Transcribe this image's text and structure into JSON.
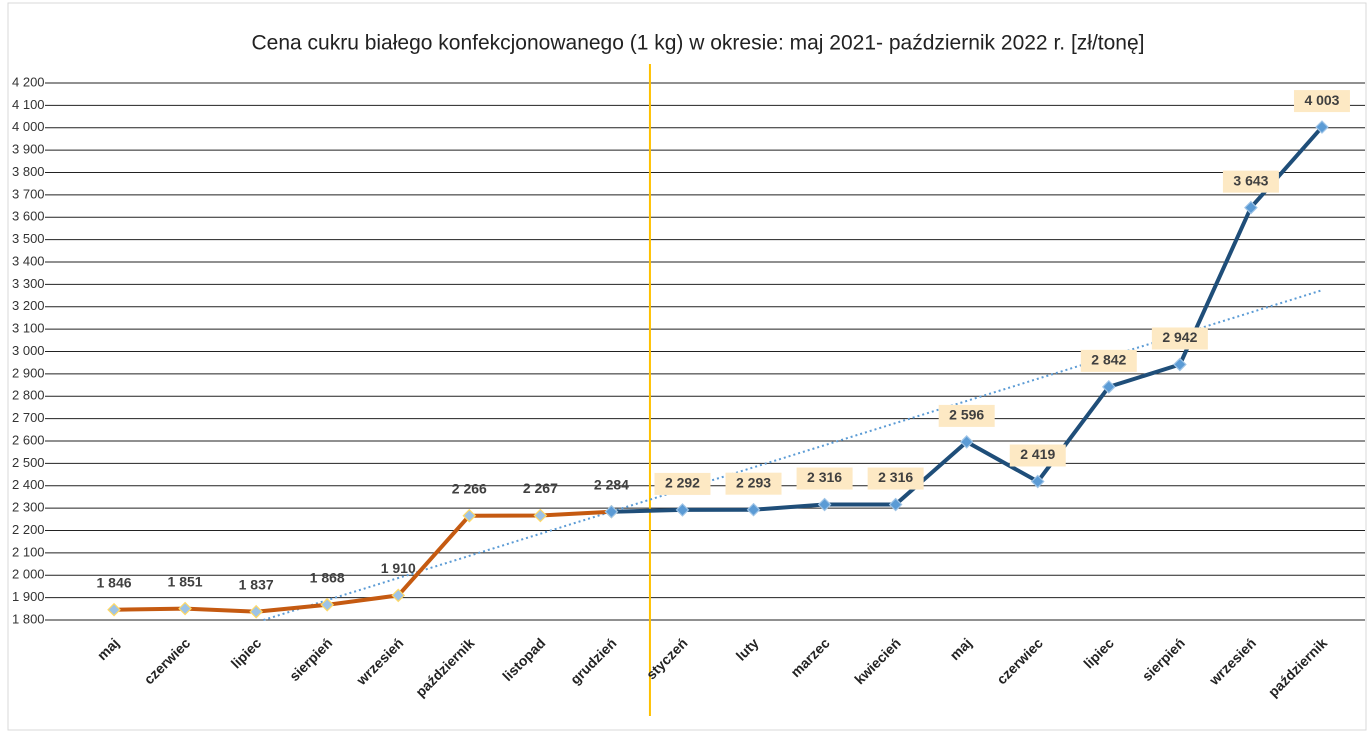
{
  "chart_data": {
    "type": "line",
    "title": "Cena cukru białego konfekcjonowanego (1 kg) w okresie: maj 2021- październik 2022 r. [zł/tonę]",
    "categories": [
      "maj",
      "czerwiec",
      "lipiec",
      "sierpień",
      "wrzesień",
      "październik",
      "listopad",
      "grudzień",
      "styczeń",
      "luty",
      "marzec",
      "kwiecień",
      "maj",
      "czerwiec",
      "lipiec",
      "sierpień",
      "wrzesień",
      "październik"
    ],
    "series": [
      {
        "color": "#c55a11",
        "values": [
          1846,
          1851,
          1837,
          1868,
          1910,
          2266,
          2267,
          2284,
          null,
          null,
          null,
          null,
          null,
          null,
          null,
          null,
          null,
          null
        ],
        "value_labels": [
          "1 846",
          "1 851",
          "1 837",
          "1 868",
          "1 910",
          "2 266",
          "2 267",
          "2 284",
          null,
          null,
          null,
          null,
          null,
          null,
          null,
          null,
          null,
          null
        ]
      },
      {
        "color": "#1f4e79",
        "values": [
          null,
          null,
          null,
          null,
          null,
          null,
          null,
          2284,
          2292,
          2293,
          2316,
          2316,
          2596,
          2419,
          2842,
          2942,
          3643,
          4003
        ],
        "value_labels": [
          null,
          null,
          null,
          null,
          null,
          null,
          null,
          null,
          "2 292",
          "2 293",
          "2 316",
          "2 316",
          "2 596",
          "2 419",
          "2 842",
          "2 942",
          "3 643",
          "4 003"
        ]
      }
    ],
    "ylim": [
      1800,
      4200
    ],
    "yticks": [
      {
        "value": 1800,
        "label": "1 800"
      },
      {
        "value": 1900,
        "label": "1 900"
      },
      {
        "value": 2000,
        "label": "2 000"
      },
      {
        "value": 2100,
        "label": "2 100"
      },
      {
        "value": 2200,
        "label": "2 200"
      },
      {
        "value": 2300,
        "label": "2 300"
      },
      {
        "value": 2400,
        "label": "2 400"
      },
      {
        "value": 2500,
        "label": "2 500"
      },
      {
        "value": 2600,
        "label": "2 600"
      },
      {
        "value": 2700,
        "label": "2 700"
      },
      {
        "value": 2800,
        "label": "2 800"
      },
      {
        "value": 2900,
        "label": "2 900"
      },
      {
        "value": 3000,
        "label": "3 000"
      },
      {
        "value": 3100,
        "label": "3 100"
      },
      {
        "value": 3200,
        "label": "3 200"
      },
      {
        "value": 3300,
        "label": "3 300"
      },
      {
        "value": 3400,
        "label": "3 400"
      },
      {
        "value": 3500,
        "label": "3 500"
      },
      {
        "value": 3600,
        "label": "3 600"
      },
      {
        "value": 3700,
        "label": "3 700"
      },
      {
        "value": 3800,
        "label": "3 800"
      },
      {
        "value": 3900,
        "label": "3 900"
      },
      {
        "value": 4000,
        "label": "4 000"
      },
      {
        "value": 4100,
        "label": "4 100"
      },
      {
        "value": 4200,
        "label": "4 200"
      }
    ],
    "grid": true,
    "trendline": true
  }
}
